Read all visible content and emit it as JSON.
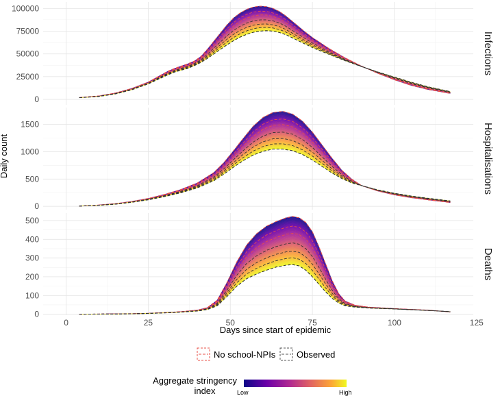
{
  "chart_data": {
    "type": "line",
    "xlabel": "Days since start of epidemic",
    "ylabel": "Daily count",
    "x_ticks": [
      0,
      25,
      50,
      75,
      100,
      125
    ],
    "x_range": [
      -7,
      124
    ],
    "panels": [
      {
        "id": "infections",
        "strip_label": "Infections",
        "ylim": [
          -6000,
          107000
        ],
        "y_ticks": [
          0,
          25000,
          50000,
          75000,
          100000
        ],
        "no_school_npis": {
          "days": [
            4,
            10,
            15,
            20,
            25,
            28,
            31,
            33,
            35,
            37,
            39,
            41,
            43,
            45,
            47,
            49,
            51,
            53,
            55,
            57,
            59,
            61,
            63,
            65,
            67,
            69,
            71,
            73,
            75,
            80,
            85,
            90,
            95,
            100,
            105,
            110,
            117
          ],
          "values": [
            2000,
            3800,
            7000,
            12000,
            19000,
            25000,
            31000,
            34000,
            36500,
            39000,
            42000,
            47000,
            55000,
            64000,
            73000,
            82000,
            89500,
            95000,
            99000,
            101500,
            102500,
            102000,
            100000,
            96500,
            91500,
            85500,
            79500,
            73500,
            68000,
            56000,
            45500,
            36500,
            28500,
            21500,
            15500,
            11000,
            6500
          ]
        },
        "observed_low": {
          "days": [
            4,
            10,
            15,
            20,
            25,
            28,
            31,
            33,
            35,
            37,
            39,
            41,
            43,
            45,
            47,
            49,
            51,
            53,
            55,
            57,
            59,
            61,
            63,
            65,
            67,
            69,
            71,
            73,
            75,
            80,
            85,
            90,
            95,
            100,
            105,
            110,
            117
          ],
          "values": [
            1800,
            3200,
            6000,
            10500,
            17000,
            22000,
            27000,
            30000,
            32000,
            34000,
            37000,
            40500,
            45000,
            50000,
            55000,
            60000,
            64500,
            68500,
            71500,
            73800,
            75000,
            75500,
            75000,
            73500,
            71000,
            67500,
            64000,
            60500,
            57000,
            49500,
            42500,
            36000,
            30000,
            24500,
            19000,
            14000,
            8500
          ]
        }
      },
      {
        "id": "hospitalisations",
        "strip_label": "Hospitalisations",
        "ylim": [
          -60,
          1810
        ],
        "y_ticks": [
          0,
          500,
          1000,
          1500
        ],
        "no_school_npis": {
          "days": [
            4,
            10,
            15,
            20,
            25,
            30,
            35,
            40,
            45,
            48,
            51,
            54,
            57,
            60,
            63,
            66,
            69,
            72,
            75,
            78,
            81,
            84,
            87,
            90,
            95,
            100,
            105,
            110,
            117
          ],
          "values": [
            5,
            25,
            50,
            90,
            145,
            220,
            310,
            430,
            620,
            800,
            1020,
            1250,
            1470,
            1630,
            1720,
            1740,
            1690,
            1560,
            1360,
            1120,
            880,
            660,
            500,
            380,
            280,
            210,
            160,
            120,
            70
          ]
        },
        "observed_low": {
          "days": [
            4,
            10,
            15,
            20,
            25,
            30,
            35,
            40,
            45,
            48,
            51,
            54,
            57,
            60,
            63,
            66,
            69,
            72,
            75,
            78,
            81,
            84,
            87,
            90,
            95,
            100,
            105,
            110,
            117
          ],
          "values": [
            5,
            20,
            40,
            75,
            120,
            180,
            250,
            340,
            470,
            590,
            720,
            840,
            940,
            1010,
            1050,
            1050,
            1020,
            950,
            850,
            730,
            610,
            510,
            430,
            380,
            300,
            240,
            190,
            150,
            100
          ]
        }
      },
      {
        "id": "deaths",
        "strip_label": "Deaths",
        "ylim": [
          -5,
          540
        ],
        "y_ticks": [
          0,
          100,
          200,
          300,
          400,
          500
        ],
        "no_school_npis": {
          "days": [
            4,
            10,
            15,
            20,
            25,
            30,
            35,
            40,
            43,
            46,
            49,
            52,
            55,
            58,
            61,
            64,
            67,
            69,
            71,
            73,
            75,
            77,
            79,
            81,
            83,
            85,
            88,
            92,
            100,
            110,
            117
          ],
          "values": [
            0,
            1,
            2,
            3,
            5,
            9,
            14,
            22,
            35,
            75,
            170,
            280,
            370,
            430,
            470,
            495,
            515,
            522,
            515,
            490,
            440,
            360,
            270,
            180,
            110,
            70,
            48,
            38,
            30,
            22,
            12
          ]
        },
        "observed_low": {
          "days": [
            4,
            10,
            15,
            20,
            25,
            30,
            35,
            40,
            43,
            46,
            49,
            52,
            55,
            58,
            61,
            64,
            67,
            69,
            71,
            73,
            75,
            77,
            79,
            81,
            83,
            85,
            88,
            92,
            100,
            110,
            117
          ],
          "values": [
            0,
            1,
            1,
            2,
            4,
            7,
            11,
            17,
            25,
            45,
            95,
            150,
            190,
            215,
            235,
            252,
            262,
            265,
            258,
            235,
            200,
            160,
            120,
            85,
            60,
            45,
            38,
            33,
            28,
            20,
            14
          ]
        }
      }
    ],
    "legend": {
      "linetype_entries": [
        {
          "label": "No school-NPIs",
          "color": "#e8504a"
        },
        {
          "label": "Observed",
          "color": "#555555"
        }
      ],
      "colorbar": {
        "title_line1": "Aggregate stringency",
        "title_line2": "index",
        "low_label": "Low",
        "high_label": "High",
        "stops": [
          "#0d0887",
          "#6a00a8",
          "#b12a90",
          "#e16462",
          "#fca636",
          "#f0f921"
        ]
      }
    }
  }
}
